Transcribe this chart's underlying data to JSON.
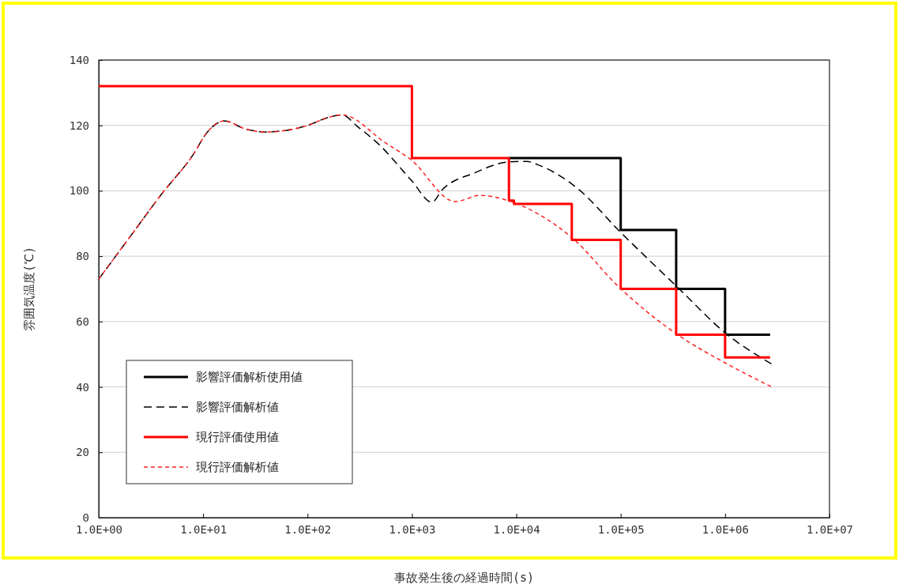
{
  "chart_data": {
    "type": "line",
    "xlabel": "事故発生後の経過時間(s)",
    "ylabel": "雰囲気温度(℃)",
    "log": "x",
    "grid": "y",
    "legend": "bottom left",
    "marker": "none",
    "xlim": [
      1,
      10000000
    ],
    "ylim": [
      0,
      140
    ],
    "xticks": [
      {
        "value": 1,
        "label": "1.0E+00"
      },
      {
        "value": 10,
        "label": "1.0E+01"
      },
      {
        "value": 100,
        "label": "1.0E+02"
      },
      {
        "value": 1000,
        "label": "1.0E+03"
      },
      {
        "value": 10000,
        "label": "1.0E+04"
      },
      {
        "value": 100000,
        "label": "1.0E+05"
      },
      {
        "value": 1000000,
        "label": "1.0E+06"
      },
      {
        "value": 10000000,
        "label": "1.0E+07"
      }
    ],
    "yticks": [
      0,
      20,
      40,
      60,
      80,
      100,
      120,
      140
    ],
    "series": [
      {
        "name": "影響評価解析使用値",
        "type": "step",
        "color": "#000000",
        "line_style": "solid",
        "x": [
          8500,
          100000,
          340000,
          1000000,
          2700000
        ],
        "values": [
          110,
          88,
          70,
          56,
          56
        ]
      },
      {
        "name": "影響評価解析値",
        "color": "#000000",
        "line_style": "dashed",
        "x": [
          1,
          2,
          4,
          8,
          11,
          16,
          25,
          40,
          63,
          100,
          160,
          215,
          300,
          490,
          1000,
          1550,
          1950,
          4000,
          8300,
          12600,
          16000,
          40000,
          95000,
          350000,
          1050000,
          2800000
        ],
        "values": [
          73,
          86,
          99,
          111,
          118,
          121.4,
          119,
          118,
          118.5,
          120,
          122.5,
          123.2,
          119.7,
          114,
          103,
          96.5,
          100.3,
          105.5,
          108.8,
          109,
          108,
          100.3,
          88,
          70.5,
          56,
          47
        ]
      },
      {
        "name": "現行評価使用値",
        "type": "step",
        "color": "#ff0000",
        "line_style": "solid",
        "x": [
          1,
          1000,
          8500,
          9500,
          34000,
          100000,
          340000,
          1000000,
          2700000
        ],
        "values": [
          132,
          110,
          97,
          96,
          85,
          70,
          56,
          49,
          49
        ]
      },
      {
        "name": "現行評価解析値",
        "color": "#ff2020",
        "line_style": "dotted",
        "x": [
          1,
          2,
          4,
          8,
          11,
          16,
          25,
          40,
          63,
          100,
          160,
          215,
          550,
          980,
          2600,
          4500,
          7600,
          16000,
          36000,
          91000,
          350000,
          1050000,
          2800000
        ],
        "values": [
          73,
          86,
          99,
          111,
          118,
          121.4,
          119,
          118,
          118.5,
          120,
          122.5,
          123.2,
          114.8,
          109.5,
          96.7,
          98.6,
          97.4,
          93,
          85,
          71.3,
          56,
          47,
          40
        ]
      }
    ]
  }
}
